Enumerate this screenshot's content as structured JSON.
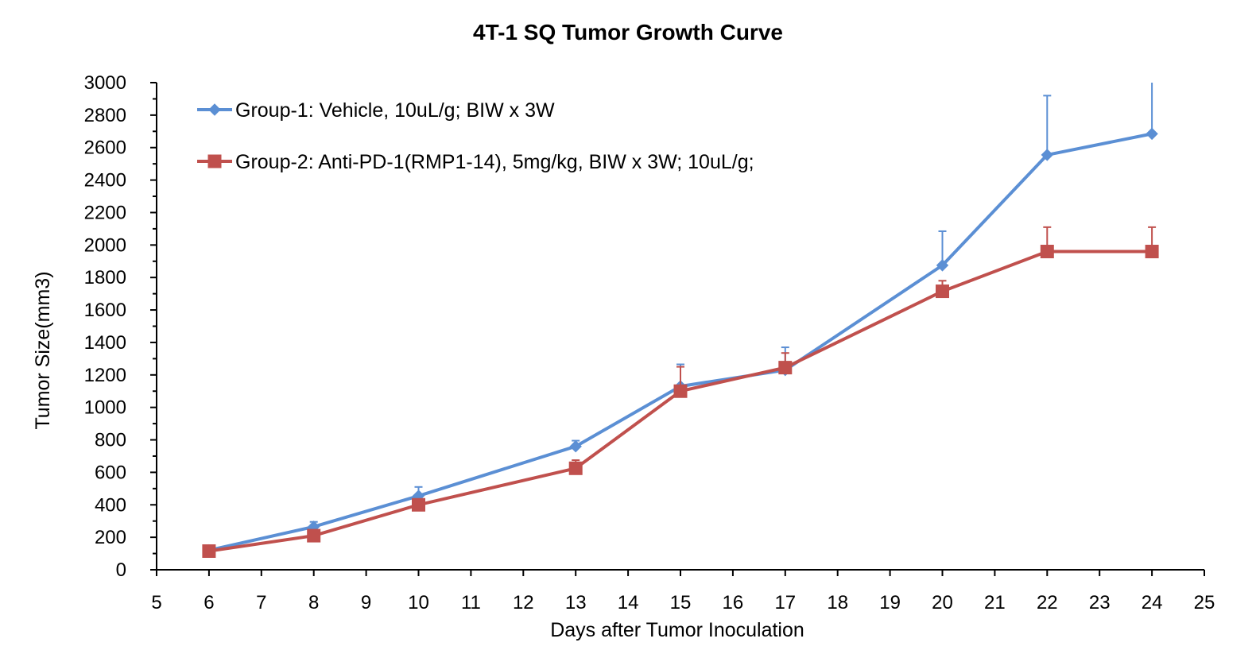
{
  "chart_data": {
    "type": "line",
    "title": "4T-1 SQ Tumor Growth Curve",
    "xlabel": "Days after Tumor Inoculation",
    "ylabel": "Tumor Size(mm3)",
    "xlim": [
      5,
      25
    ],
    "ylim": [
      0,
      3000
    ],
    "x_ticks": [
      5,
      6,
      7,
      8,
      9,
      10,
      11,
      12,
      13,
      14,
      15,
      16,
      17,
      18,
      19,
      20,
      21,
      22,
      23,
      24,
      25
    ],
    "y_ticks": [
      0,
      200,
      400,
      600,
      800,
      1000,
      1200,
      1400,
      1600,
      1800,
      2000,
      2200,
      2400,
      2600,
      2800,
      3000
    ],
    "grid": false,
    "legend_position": "top-left",
    "x": [
      6,
      8,
      10,
      13,
      15,
      17,
      20,
      22,
      24
    ],
    "series": [
      {
        "name": "Group-1: Vehicle, 10uL/g; BIW x 3W",
        "color": "#5B8FD4",
        "marker": "diamond",
        "values": [
          120,
          265,
          455,
          760,
          1130,
          1230,
          1875,
          2555,
          2685
        ],
        "error_upper": [
          10,
          30,
          55,
          35,
          135,
          140,
          210,
          365,
          320
        ]
      },
      {
        "name": "Group-2: Anti-PD-1(RMP1-14), 5mg/kg, BIW x 3W; 10uL/g;",
        "color": "#C0504D",
        "marker": "square",
        "values": [
          115,
          210,
          400,
          625,
          1100,
          1245,
          1715,
          1960,
          1960
        ],
        "error_upper": [
          10,
          20,
          20,
          50,
          150,
          90,
          65,
          150,
          150
        ]
      }
    ]
  }
}
